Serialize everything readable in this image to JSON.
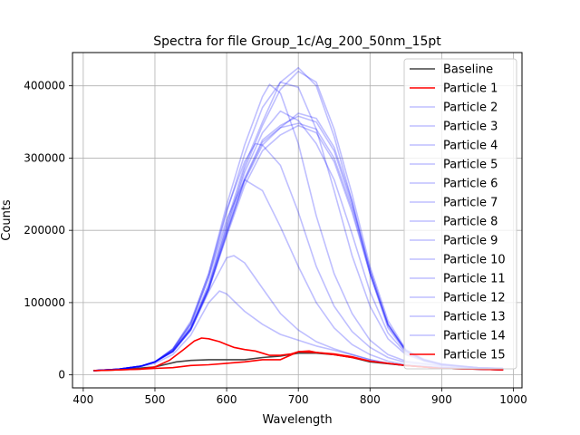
{
  "chart_data": {
    "type": "line",
    "title": "Spectra for file Group_1c/Ag_200_50nm_15pt",
    "xlabel": "Wavelength",
    "ylabel": "Counts",
    "xlim": [
      385,
      1012
    ],
    "ylim": [
      -18000,
      446000
    ],
    "xticks": [
      400,
      500,
      600,
      700,
      800,
      900,
      1000
    ],
    "yticks": [
      0,
      100000,
      200000,
      300000,
      400000
    ],
    "grid": true,
    "legend_position": "top-right",
    "colors": {
      "baseline": "#444444",
      "highlight": "#ff0000",
      "faint": "#0000ff"
    },
    "series": [
      {
        "name": "Baseline",
        "color": "#444444",
        "opacity": 1,
        "width": 1.6,
        "x": [
          415,
          450,
          500,
          530,
          550,
          575,
          600,
          625,
          650,
          675,
          700,
          725,
          750,
          775,
          800,
          850,
          900,
          950,
          985
        ],
        "y": [
          6000,
          7000,
          11000,
          18000,
          20000,
          21000,
          21000,
          21000,
          24000,
          26000,
          30000,
          30000,
          28000,
          24000,
          18000,
          13000,
          9000,
          8000,
          7000
        ]
      },
      {
        "name": "Particle 1",
        "color": "#ff0000",
        "opacity": 1,
        "width": 1.6,
        "x": [
          415,
          450,
          480,
          500,
          525,
          550,
          575,
          600,
          625,
          650,
          675,
          700,
          725,
          750,
          775,
          800,
          850,
          900,
          950,
          985
        ],
        "y": [
          6000,
          7000,
          8000,
          9000,
          10000,
          13000,
          14000,
          16000,
          18000,
          21000,
          21000,
          32000,
          31000,
          28000,
          24000,
          19000,
          13000,
          9000,
          8000,
          7000
        ]
      },
      {
        "name": "Particle 2",
        "color": "#0000ff",
        "opacity": 0.25,
        "width": 1.6,
        "x": [
          415,
          450,
          480,
          500,
          525,
          550,
          575,
          600,
          625,
          650,
          675,
          700,
          725,
          750,
          775,
          800,
          825,
          850,
          875,
          900,
          950,
          985
        ],
        "y": [
          6000,
          8000,
          12000,
          18000,
          32000,
          62000,
          118000,
          195000,
          268000,
          318000,
          342000,
          348000,
          340000,
          300000,
          230000,
          140000,
          65000,
          32000,
          20000,
          14000,
          10000,
          9000
        ]
      },
      {
        "name": "Particle 3",
        "color": "#0000ff",
        "opacity": 0.25,
        "width": 1.6,
        "x": [
          415,
          450,
          480,
          500,
          525,
          550,
          575,
          600,
          625,
          650,
          675,
          700,
          725,
          750,
          775,
          800,
          825,
          850,
          875,
          900,
          950,
          985
        ],
        "y": [
          6000,
          8000,
          12000,
          18000,
          33000,
          64000,
          122000,
          205000,
          285000,
          345000,
          395000,
          420000,
          405000,
          340000,
          250000,
          150000,
          75000,
          35000,
          22000,
          15000,
          10000,
          9000
        ]
      },
      {
        "name": "Particle 4",
        "color": "#0000ff",
        "opacity": 0.25,
        "width": 1.6,
        "x": [
          415,
          450,
          480,
          500,
          525,
          550,
          575,
          600,
          625,
          650,
          675,
          700,
          725,
          750,
          775,
          800,
          825,
          850,
          875,
          900,
          950,
          985
        ],
        "y": [
          6000,
          8000,
          12000,
          18000,
          34000,
          66000,
          126000,
          210000,
          290000,
          350000,
          405000,
          425000,
          400000,
          330000,
          240000,
          140000,
          70000,
          33000,
          21000,
          15000,
          10000,
          9000
        ]
      },
      {
        "name": "Particle 5",
        "color": "#0000ff",
        "opacity": 0.25,
        "width": 1.6,
        "x": [
          415,
          450,
          480,
          500,
          525,
          550,
          575,
          600,
          625,
          650,
          675,
          700,
          725,
          750,
          775,
          800,
          825,
          850,
          875,
          900,
          950,
          985
        ],
        "y": [
          6000,
          8000,
          12000,
          18000,
          32000,
          62000,
          118000,
          192000,
          262000,
          310000,
          332000,
          345000,
          335000,
          295000,
          225000,
          140000,
          68000,
          33000,
          20000,
          14000,
          10000,
          9000
        ]
      },
      {
        "name": "Particle 6",
        "color": "#0000ff",
        "opacity": 0.25,
        "width": 1.6,
        "x": [
          415,
          450,
          480,
          500,
          525,
          550,
          575,
          600,
          625,
          650,
          675,
          700,
          725,
          750,
          775,
          800,
          825,
          850,
          875,
          900,
          950,
          985
        ],
        "y": [
          6000,
          8000,
          12000,
          18000,
          33000,
          64000,
          120000,
          198000,
          272000,
          325000,
          345000,
          358000,
          350000,
          310000,
          235000,
          145000,
          70000,
          34000,
          21000,
          15000,
          10000,
          9000
        ]
      },
      {
        "name": "Particle 7",
        "color": "#0000ff",
        "opacity": 0.25,
        "width": 1.6,
        "x": [
          415,
          450,
          480,
          500,
          525,
          550,
          575,
          600,
          625,
          650,
          675,
          700,
          725,
          750,
          775,
          800,
          825,
          850,
          875,
          900,
          950,
          985
        ],
        "y": [
          6000,
          8000,
          12000,
          18000,
          32000,
          63000,
          119000,
          196000,
          270000,
          322000,
          342000,
          362000,
          355000,
          315000,
          240000,
          145000,
          70000,
          34000,
          21000,
          15000,
          10000,
          9000
        ]
      },
      {
        "name": "Particle 8",
        "color": "#0000ff",
        "opacity": 0.25,
        "width": 1.6,
        "x": [
          415,
          450,
          480,
          500,
          525,
          550,
          575,
          600,
          625,
          650,
          675,
          700,
          725,
          750,
          775,
          800,
          825,
          850,
          875,
          900,
          950,
          985
        ],
        "y": [
          6000,
          8000,
          12000,
          18000,
          35000,
          70000,
          135000,
          225000,
          305000,
          370000,
          405000,
          398000,
          340000,
          255000,
          165000,
          95000,
          50000,
          28000,
          19000,
          14000,
          10000,
          9000
        ]
      },
      {
        "name": "Particle 9",
        "color": "#0000ff",
        "opacity": 0.25,
        "width": 1.6,
        "x": [
          415,
          450,
          480,
          500,
          525,
          550,
          575,
          600,
          625,
          650,
          660,
          675,
          700,
          725,
          750,
          775,
          800,
          825,
          850,
          900,
          950,
          985
        ],
        "y": [
          6000,
          8000,
          12000,
          18000,
          36000,
          72000,
          140000,
          235000,
          318000,
          385000,
          402000,
          390000,
          320000,
          220000,
          140000,
          85000,
          48000,
          28000,
          19000,
          13000,
          10000,
          9000
        ]
      },
      {
        "name": "Particle 10",
        "color": "#0000ff",
        "opacity": 0.25,
        "width": 1.6,
        "x": [
          415,
          450,
          480,
          500,
          525,
          550,
          575,
          600,
          625,
          640,
          650,
          675,
          700,
          725,
          750,
          775,
          800,
          825,
          850,
          900,
          950,
          985
        ],
        "y": [
          6000,
          8000,
          12000,
          18000,
          36000,
          74000,
          140000,
          228000,
          295000,
          320000,
          318000,
          290000,
          225000,
          150000,
          95000,
          60000,
          38000,
          24000,
          17000,
          12000,
          9000,
          8000
        ]
      },
      {
        "name": "Particle 11",
        "color": "#0000ff",
        "opacity": 0.25,
        "width": 1.6,
        "x": [
          415,
          450,
          480,
          500,
          525,
          550,
          575,
          600,
          625,
          650,
          675,
          700,
          725,
          750,
          775,
          800,
          825,
          850,
          900,
          950,
          985
        ],
        "y": [
          6000,
          8000,
          12000,
          18000,
          35000,
          70000,
          135000,
          215000,
          270000,
          255000,
          205000,
          150000,
          100000,
          65000,
          42000,
          28000,
          19000,
          14000,
          10000,
          9000,
          8000
        ]
      },
      {
        "name": "Particle 12",
        "color": "#0000ff",
        "opacity": 0.25,
        "width": 1.6,
        "x": [
          415,
          450,
          480,
          500,
          525,
          550,
          575,
          600,
          610,
          625,
          650,
          675,
          700,
          725,
          750,
          775,
          800,
          825,
          850,
          900,
          950,
          985
        ],
        "y": [
          6000,
          8000,
          12000,
          18000,
          32000,
          62000,
          115000,
          162000,
          165000,
          155000,
          120000,
          85000,
          62000,
          46000,
          36000,
          28000,
          21000,
          16000,
          13000,
          10000,
          8000,
          7000
        ]
      },
      {
        "name": "Particle 13",
        "color": "#0000ff",
        "opacity": 0.25,
        "width": 1.6,
        "x": [
          415,
          450,
          480,
          500,
          525,
          550,
          575,
          590,
          600,
          625,
          650,
          675,
          700,
          725,
          750,
          775,
          800,
          825,
          850,
          900,
          950,
          985
        ],
        "y": [
          6000,
          8000,
          11000,
          16000,
          28000,
          55000,
          100000,
          116000,
          112000,
          88000,
          70000,
          56000,
          48000,
          40000,
          34000,
          28000,
          21000,
          16000,
          13000,
          10000,
          8000,
          7000
        ]
      },
      {
        "name": "Particle 14",
        "color": "#0000ff",
        "opacity": 0.25,
        "width": 1.6,
        "x": [
          415,
          450,
          480,
          500,
          525,
          550,
          575,
          600,
          625,
          650,
          675,
          700,
          725,
          750,
          775,
          800,
          825,
          850,
          875,
          900,
          950,
          985
        ],
        "y": [
          6000,
          8000,
          12000,
          18000,
          33000,
          65000,
          122000,
          202000,
          280000,
          335000,
          365000,
          352000,
          320000,
          270000,
          195000,
          115000,
          58000,
          30000,
          20000,
          14000,
          10000,
          9000
        ]
      },
      {
        "name": "Particle 15",
        "color": "#ff0000",
        "opacity": 1,
        "width": 1.6,
        "x": [
          415,
          450,
          480,
          500,
          520,
          540,
          555,
          565,
          575,
          590,
          600,
          610,
          625,
          640,
          650,
          660,
          675,
          690,
          700,
          715,
          725,
          750,
          775,
          800,
          850,
          900,
          950,
          985
        ],
        "y": [
          6000,
          7000,
          8000,
          11000,
          20000,
          35000,
          47000,
          51000,
          50000,
          46000,
          42000,
          38000,
          35000,
          33000,
          30000,
          27000,
          27000,
          29000,
          32000,
          33000,
          31000,
          29000,
          25000,
          19000,
          13000,
          9000,
          8000,
          7000
        ]
      }
    ]
  }
}
